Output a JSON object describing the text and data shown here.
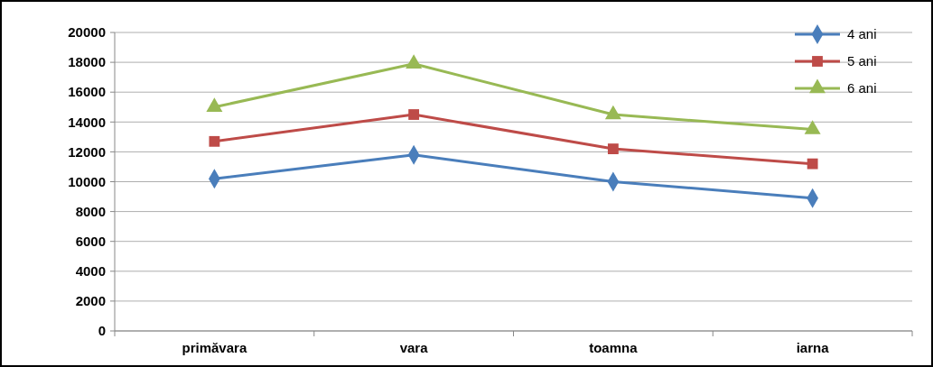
{
  "chart_data": {
    "type": "line",
    "categories": [
      "primăvara",
      "vara",
      "toamna",
      "iarna"
    ],
    "series": [
      {
        "name": "4 ani",
        "color": "#4a7ebb",
        "marker": "diamond",
        "values": [
          10200,
          11800,
          10000,
          8900
        ]
      },
      {
        "name": "5 ani",
        "color": "#be4b48",
        "marker": "square",
        "values": [
          12700,
          14500,
          12200,
          11200
        ]
      },
      {
        "name": "6 ani",
        "color": "#98b954",
        "marker": "triangle",
        "values": [
          15000,
          17900,
          14500,
          13500
        ]
      }
    ],
    "ylim": [
      0,
      20000
    ],
    "yticks": [
      0,
      2000,
      4000,
      6000,
      8000,
      10000,
      12000,
      14000,
      16000,
      18000,
      20000
    ],
    "grid": "y",
    "legend": "top right"
  }
}
